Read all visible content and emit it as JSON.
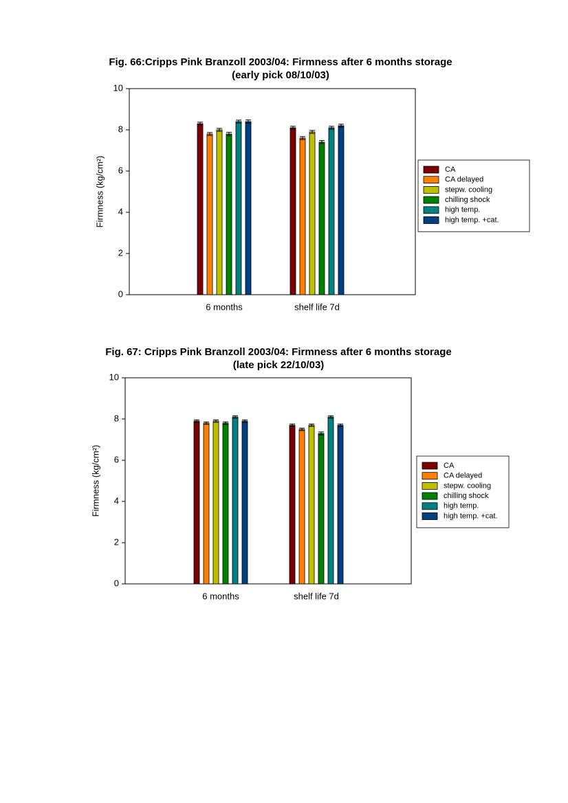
{
  "chart_data": [
    {
      "type": "bar",
      "title": "Fig. 66:Cripps Pink Branzoll 2003/04: Firmness after 6 months storage",
      "subtitle": "(early pick 08/10/03)",
      "y_label": "Firmness (kg/cm²)",
      "categories": [
        "6 months",
        "shelf life 7d"
      ],
      "ylim": [
        0,
        10
      ],
      "yticks": [
        0,
        2,
        4,
        6,
        8,
        10
      ],
      "series": [
        {
          "name": "CA",
          "color": "#7b0000",
          "values": [
            8.3,
            8.1
          ],
          "errors": [
            0.07,
            0.07
          ]
        },
        {
          "name": "CA delayed",
          "color": "#ff8000",
          "values": [
            7.8,
            7.6
          ],
          "errors": [
            0.07,
            0.07
          ]
        },
        {
          "name": "stepw. cooling",
          "color": "#c0c000",
          "values": [
            8.0,
            7.9
          ],
          "errors": [
            0.07,
            0.07
          ]
        },
        {
          "name": "chilling shock",
          "color": "#008000",
          "values": [
            7.8,
            7.4
          ],
          "errors": [
            0.08,
            0.08
          ]
        },
        {
          "name": "high temp.",
          "color": "#008080",
          "values": [
            8.4,
            8.1
          ],
          "errors": [
            0.07,
            0.07
          ]
        },
        {
          "name": "high temp. +cat.",
          "color": "#004080",
          "values": [
            8.4,
            8.2
          ],
          "errors": [
            0.08,
            0.07
          ]
        }
      ]
    },
    {
      "type": "bar",
      "title": "Fig. 67: Cripps Pink Branzoll 2003/04: Firmness after 6 months storage",
      "subtitle": "(late pick 22/10/03)",
      "y_label": "Firmness (kg/cm²)",
      "categories": [
        "6 months",
        "shelf life 7d"
      ],
      "ylim": [
        0,
        10
      ],
      "yticks": [
        0,
        2,
        4,
        6,
        8,
        10
      ],
      "series": [
        {
          "name": "CA",
          "color": "#7b0000",
          "values": [
            7.9,
            7.7
          ],
          "errors": [
            0.06,
            0.06
          ]
        },
        {
          "name": "CA delayed",
          "color": "#ff8000",
          "values": [
            7.8,
            7.5
          ],
          "errors": [
            0.06,
            0.06
          ]
        },
        {
          "name": "stepw. cooling",
          "color": "#c0c000",
          "values": [
            7.9,
            7.7
          ],
          "errors": [
            0.06,
            0.06
          ]
        },
        {
          "name": "chilling shock",
          "color": "#008000",
          "values": [
            7.8,
            7.3
          ],
          "errors": [
            0.06,
            0.07
          ]
        },
        {
          "name": "high temp.",
          "color": "#008080",
          "values": [
            8.1,
            8.1
          ],
          "errors": [
            0.06,
            0.06
          ]
        },
        {
          "name": "high temp. +cat.",
          "color": "#004080",
          "values": [
            7.9,
            7.7
          ],
          "errors": [
            0.06,
            0.06
          ]
        }
      ]
    }
  ]
}
